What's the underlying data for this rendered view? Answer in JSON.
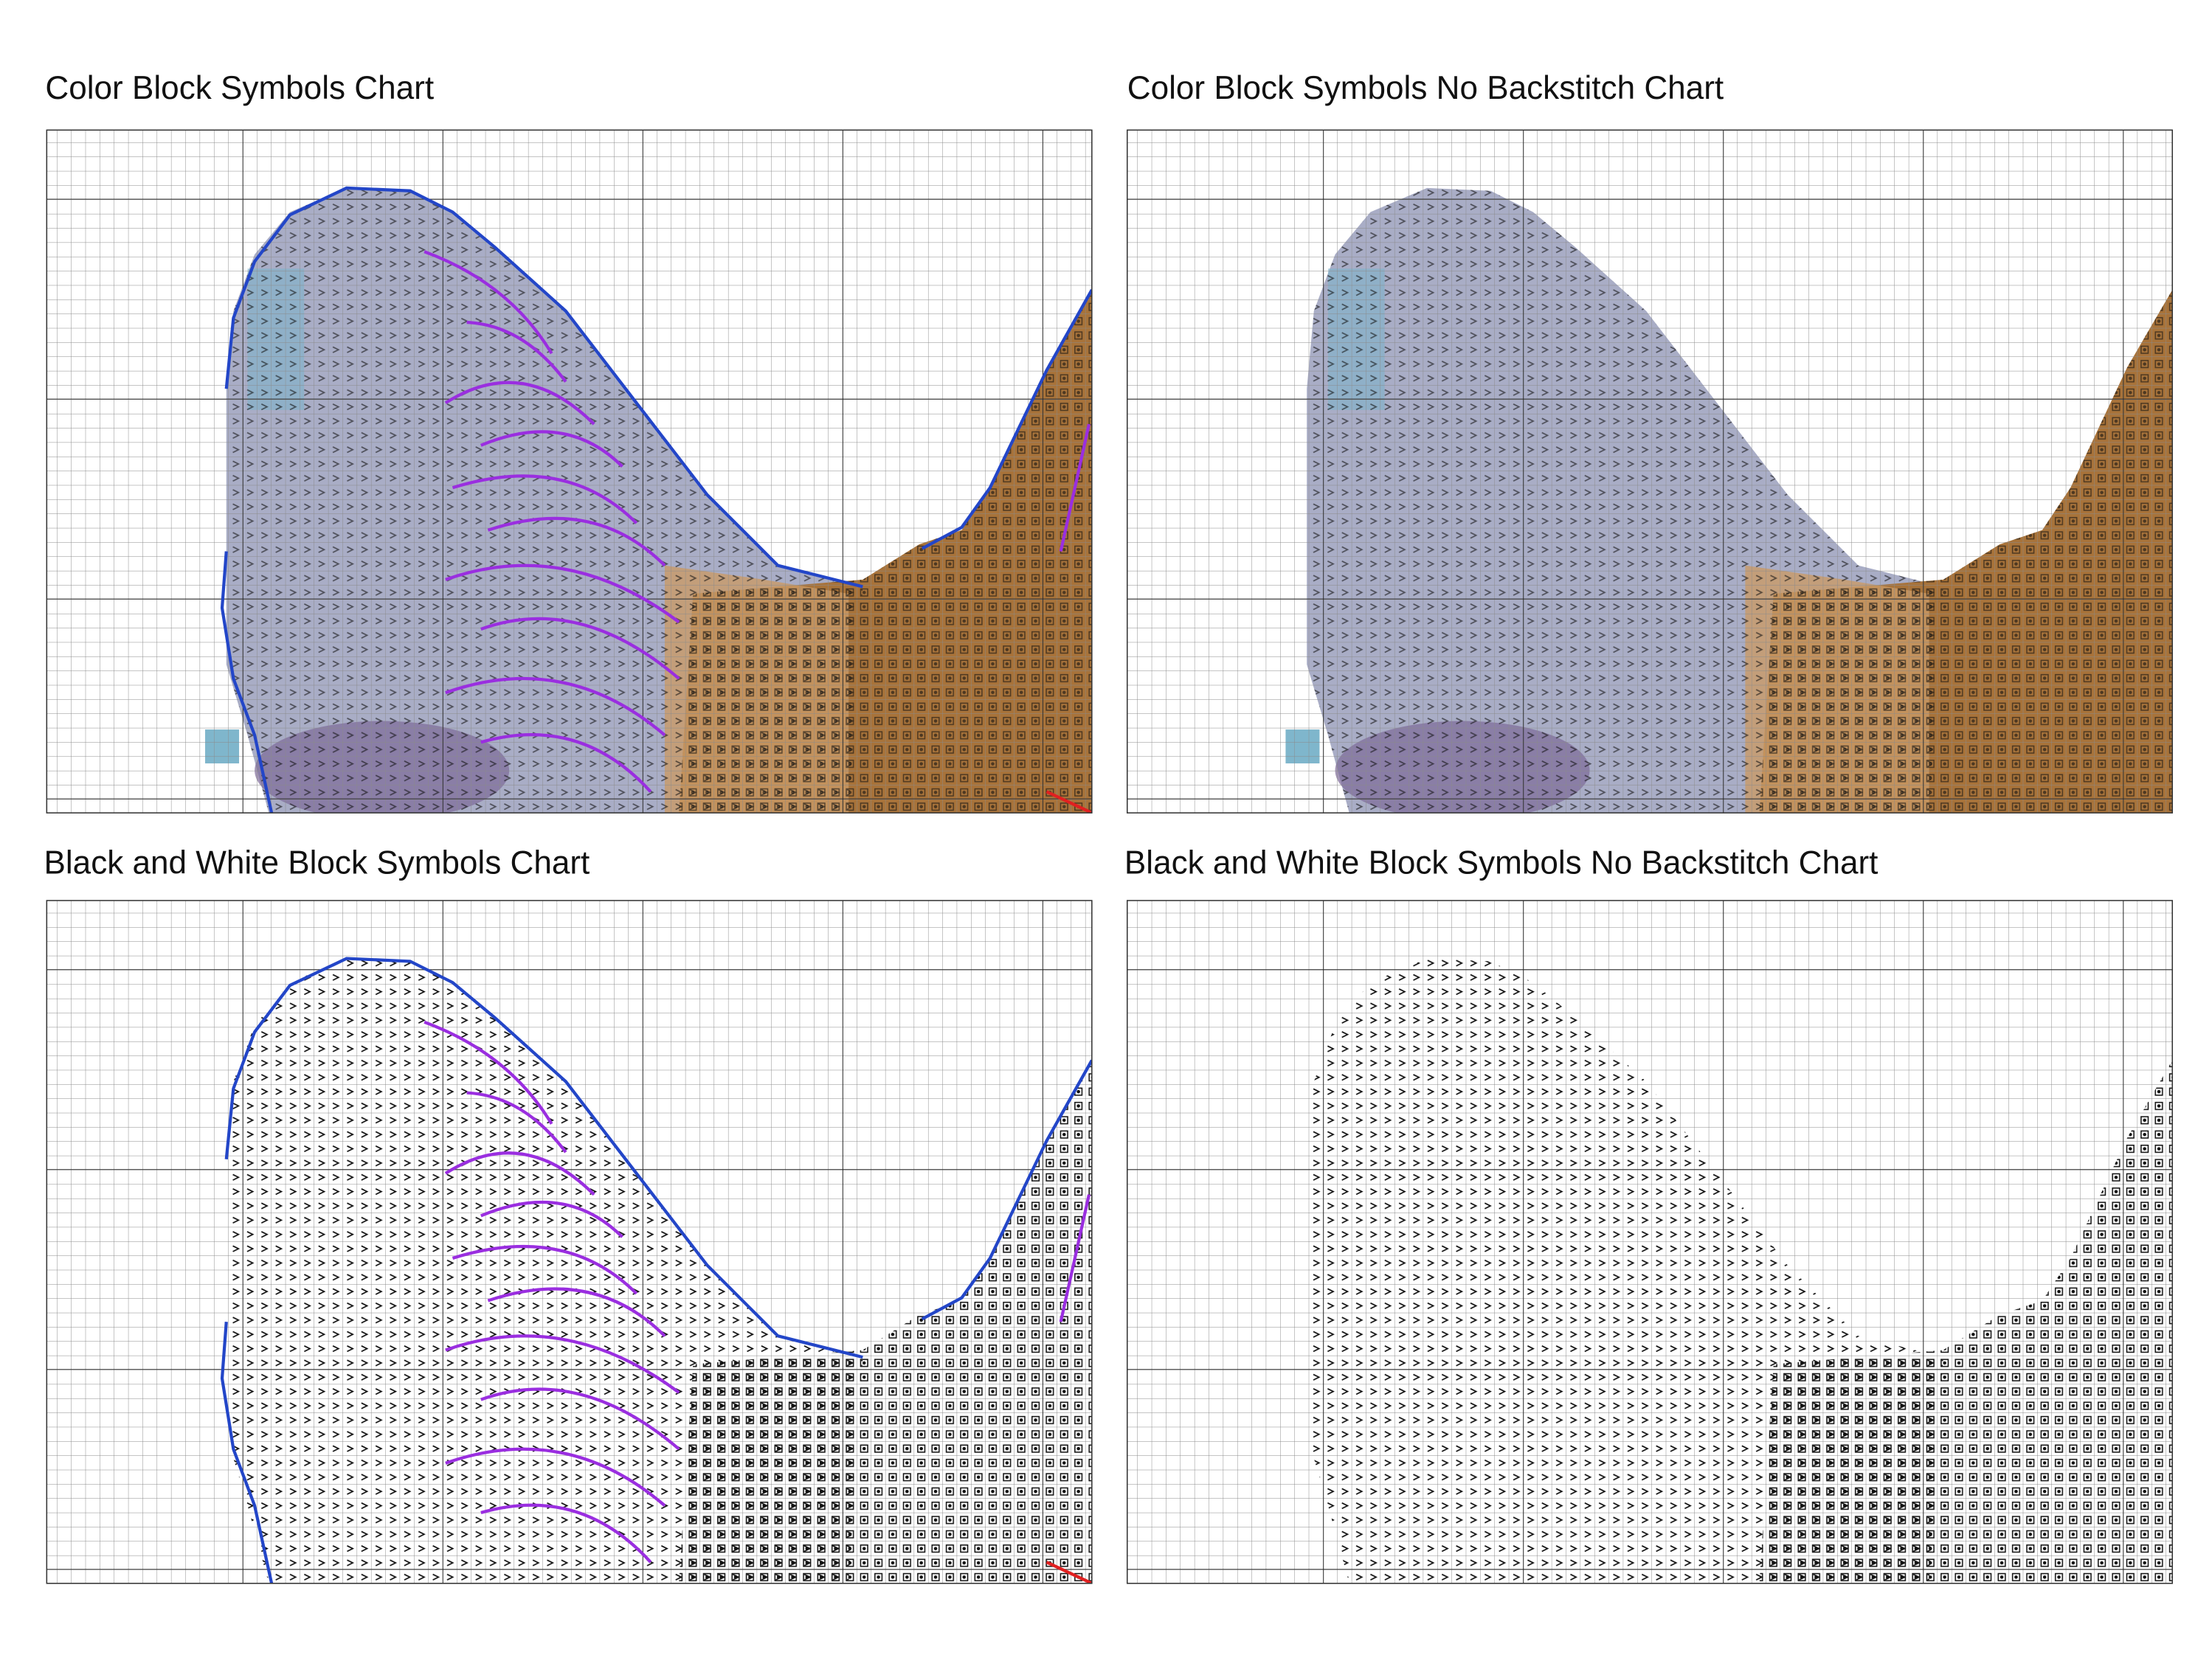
{
  "panels": [
    {
      "title": "Color Block Symbols Chart"
    },
    {
      "title": "Color Block Symbols No Backstitch Chart"
    },
    {
      "title": "Black and White Block Symbols Chart"
    },
    {
      "title": "Black and White Block Symbols No Backstitch Chart"
    }
  ]
}
